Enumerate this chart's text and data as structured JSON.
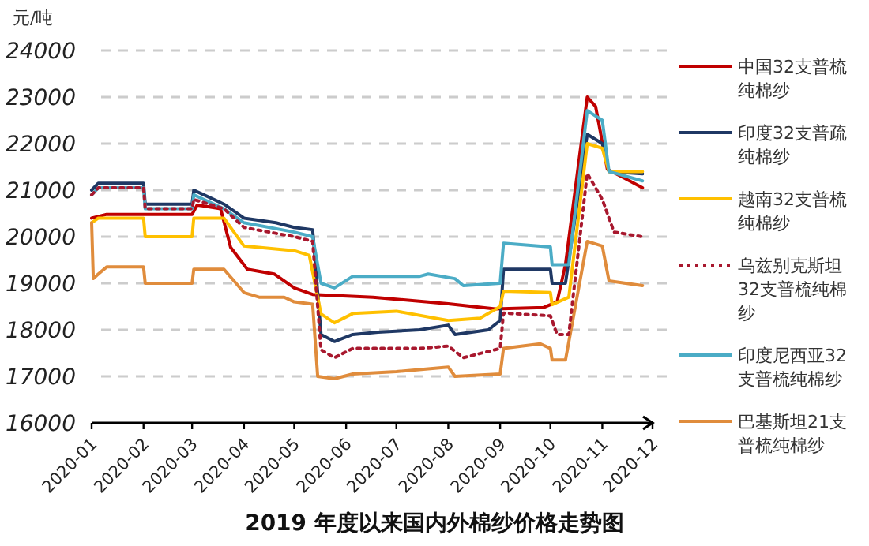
{
  "chart_data": {
    "type": "line",
    "title": "2019 年度以来国内外棉纱价格走势图",
    "ylabel": "元/吨",
    "xlim": [
      "2020-01",
      "2020-12"
    ],
    "xticks": [
      "2020-01",
      "2020-02",
      "2020-03",
      "2020-04",
      "2020-05",
      "2020-06",
      "2020-07",
      "2020-08",
      "2020-09",
      "2020-10",
      "2020-11",
      "2020-12"
    ],
    "ylim": [
      16000,
      24000
    ],
    "yticks": [
      16000,
      17000,
      18000,
      19000,
      20000,
      21000,
      22000,
      23000,
      24000
    ],
    "grid": "y",
    "legend": "right",
    "series": [
      {
        "name": "中国32支普梳纯棉纱",
        "color": "#c00000",
        "line_style": "solid",
        "x": [
          "2020-01-01",
          "2020-01-10",
          "2020-03-01",
          "2020-03-04",
          "2020-03-18",
          "2020-03-24",
          "2020-04-03",
          "2020-04-19",
          "2020-05-01",
          "2020-05-12",
          "2020-06-17",
          "2020-08-01",
          "2020-08-29",
          "2020-09-27",
          "2020-10-05",
          "2020-10-10",
          "2020-10-23",
          "2020-10-28",
          "2020-11-04",
          "2020-11-12",
          "2020-11-25"
        ],
        "values": [
          20400,
          20480,
          20480,
          20680,
          20600,
          19770,
          19300,
          19200,
          18900,
          18760,
          18700,
          18560,
          18450,
          18480,
          18600,
          19400,
          23000,
          22800,
          21450,
          21300,
          21050
        ]
      },
      {
        "name": "印度32支普疏纯棉纱",
        "color": "#1f3864",
        "line_style": "solid",
        "x": [
          "2020-01-01",
          "2020-01-05",
          "2020-02-01",
          "2020-02-02",
          "2020-03-01",
          "2020-03-02",
          "2020-03-20",
          "2020-04-01",
          "2020-04-20",
          "2020-05-01",
          "2020-05-12",
          "2020-05-17",
          "2020-05-25",
          "2020-06-05",
          "2020-06-20",
          "2020-07-15",
          "2020-08-01",
          "2020-08-05",
          "2020-08-25",
          "2020-09-01",
          "2020-09-03",
          "2020-10-01",
          "2020-10-02",
          "2020-10-10",
          "2020-10-23",
          "2020-11-01",
          "2020-11-05",
          "2020-11-25"
        ],
        "values": [
          21000,
          21150,
          21150,
          20700,
          20700,
          21000,
          20700,
          20400,
          20300,
          20200,
          20150,
          17900,
          17750,
          17900,
          17950,
          18000,
          18100,
          17900,
          18000,
          18200,
          19300,
          19300,
          19000,
          19000,
          22200,
          22000,
          21400,
          21350
        ]
      },
      {
        "name": "越南32支普梳纯棉纱",
        "color": "#ffc000",
        "line_style": "solid",
        "x": [
          "2020-01-01",
          "2020-01-05",
          "2020-02-01",
          "2020-02-02",
          "2020-03-01",
          "2020-03-02",
          "2020-03-20",
          "2020-04-01",
          "2020-05-01",
          "2020-05-10",
          "2020-05-17",
          "2020-05-25",
          "2020-06-05",
          "2020-07-01",
          "2020-08-01",
          "2020-08-20",
          "2020-09-01",
          "2020-09-03",
          "2020-10-01",
          "2020-10-02",
          "2020-10-12",
          "2020-10-23",
          "2020-11-01",
          "2020-11-05",
          "2020-11-25"
        ],
        "values": [
          20300,
          20400,
          20400,
          20000,
          20000,
          20400,
          20400,
          19800,
          19700,
          19600,
          18340,
          18150,
          18350,
          18400,
          18200,
          18250,
          18500,
          18830,
          18800,
          18540,
          18700,
          22000,
          21900,
          21400,
          21400
        ]
      },
      {
        "name": "乌兹别克斯坦32支普梳纯棉纱",
        "color": "#a8182e",
        "line_style": "dotted",
        "x": [
          "2020-01-01",
          "2020-01-05",
          "2020-02-01",
          "2020-02-02",
          "2020-03-01",
          "2020-03-02",
          "2020-03-20",
          "2020-04-01",
          "2020-05-01",
          "2020-05-12",
          "2020-05-17",
          "2020-05-25",
          "2020-06-05",
          "2020-07-15",
          "2020-08-01",
          "2020-08-10",
          "2020-09-01",
          "2020-09-03",
          "2020-10-01",
          "2020-10-05",
          "2020-10-12",
          "2020-10-23",
          "2020-11-01",
          "2020-11-08",
          "2020-11-25"
        ],
        "values": [
          20900,
          21050,
          21050,
          20600,
          20600,
          20800,
          20600,
          20200,
          20000,
          19900,
          17570,
          17400,
          17600,
          17600,
          17650,
          17400,
          17600,
          18360,
          18300,
          17900,
          17900,
          21360,
          20800,
          20100,
          20000
        ]
      },
      {
        "name": "印度尼西亚32支普梳纯棉纱",
        "color": "#4bacc6",
        "line_style": "solid",
        "x": [
          "2020-01-01",
          "2020-01-05",
          "2020-02-01",
          "2020-02-02",
          "2020-03-01",
          "2020-03-02",
          "2020-03-20",
          "2020-04-01",
          "2020-05-01",
          "2020-05-12",
          "2020-05-17",
          "2020-05-25",
          "2020-06-05",
          "2020-07-15",
          "2020-07-20",
          "2020-08-05",
          "2020-08-10",
          "2020-09-01",
          "2020-09-03",
          "2020-10-01",
          "2020-10-02",
          "2020-10-12",
          "2020-10-23",
          "2020-11-01",
          "2020-11-05",
          "2020-11-25"
        ],
        "values": [
          20900,
          21050,
          21050,
          20600,
          20600,
          20900,
          20600,
          20300,
          20100,
          20000,
          19000,
          18900,
          19150,
          19150,
          19200,
          19100,
          18950,
          19000,
          19860,
          19780,
          19400,
          19400,
          22710,
          22500,
          21400,
          21200
        ]
      },
      {
        "name": "巴基斯坦21支普梳纯棉纱",
        "color": "#e08c3c",
        "line_style": "solid",
        "x": [
          "2020-01-01",
          "2020-01-02",
          "2020-01-05",
          "2020-01-10",
          "2020-02-01",
          "2020-02-02",
          "2020-03-01",
          "2020-03-02",
          "2020-03-20",
          "2020-04-01",
          "2020-04-10",
          "2020-04-25",
          "2020-05-01",
          "2020-05-12",
          "2020-05-15",
          "2020-05-25",
          "2020-06-05",
          "2020-07-01",
          "2020-08-01",
          "2020-08-05",
          "2020-09-01",
          "2020-09-03",
          "2020-09-25",
          "2020-10-01",
          "2020-10-02",
          "2020-10-10",
          "2020-10-23",
          "2020-11-01",
          "2020-11-05",
          "2020-11-25"
        ],
        "values": [
          20300,
          19100,
          19200,
          19350,
          19350,
          19000,
          19000,
          19300,
          19300,
          18800,
          18700,
          18700,
          18600,
          18550,
          17000,
          16950,
          17050,
          17100,
          17200,
          17000,
          17050,
          17600,
          17700,
          17600,
          17350,
          17350,
          19900,
          19800,
          19050,
          18950
        ]
      }
    ]
  }
}
